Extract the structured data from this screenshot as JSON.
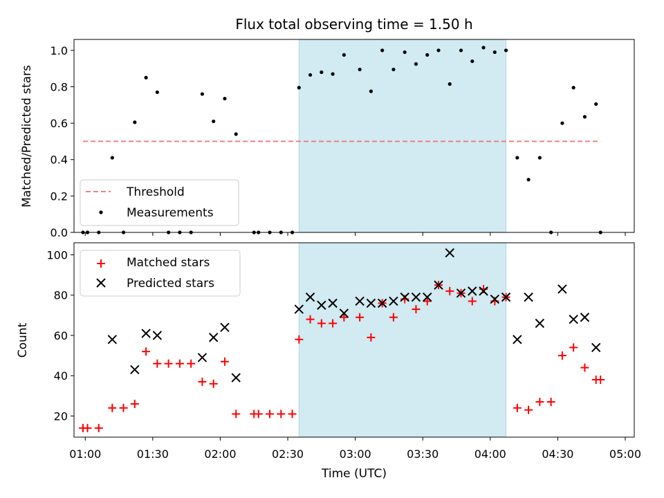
{
  "title": "Flux total observing time = 1.50 h",
  "colors": {
    "span": "#add8e6",
    "threshold": "#f08080",
    "measurement": "#000000",
    "matched": "#ff0000",
    "predicted": "#000000"
  },
  "chart_data": [
    {
      "type": "scatter",
      "ylabel": "Matched/Predicted stars",
      "xlabel": "",
      "xlim": [
        "00:55",
        "05:04"
      ],
      "ylim": [
        0,
        1.06
      ],
      "yticks": [
        0.0,
        0.2,
        0.4,
        0.6,
        0.8,
        1.0
      ],
      "ytick_labels": [
        "0.0",
        "0.2",
        "0.4",
        "0.6",
        "0.8",
        "1.0"
      ],
      "shaded_span": [
        "02:35",
        "04:07"
      ],
      "threshold": {
        "name": "Threshold",
        "y": 0.5,
        "x_range": [
          "00:59",
          "04:49"
        ]
      },
      "legend": {
        "position": "lower-left",
        "entries": [
          "Threshold",
          "Measurements"
        ]
      },
      "series": [
        {
          "name": "Measurements",
          "points": [
            [
              "00:59",
              0.0
            ],
            [
              "01:01",
              0.0
            ],
            [
              "01:06",
              0.0
            ],
            [
              "01:12",
              0.41
            ],
            [
              "01:17",
              0.0
            ],
            [
              "01:22",
              0.605
            ],
            [
              "01:27",
              0.85
            ],
            [
              "01:32",
              0.77
            ],
            [
              "01:37",
              0.0
            ],
            [
              "01:42",
              0.0
            ],
            [
              "01:47",
              0.0
            ],
            [
              "01:52",
              0.76
            ],
            [
              "01:57",
              0.61
            ],
            [
              "02:02",
              0.735
            ],
            [
              "02:07",
              0.54
            ],
            [
              "02:15",
              0.0
            ],
            [
              "02:17",
              0.0
            ],
            [
              "02:22",
              0.0
            ],
            [
              "02:27",
              0.0
            ],
            [
              "02:32",
              0.0
            ],
            [
              "02:35",
              0.795
            ],
            [
              "02:40",
              0.865
            ],
            [
              "02:45",
              0.88
            ],
            [
              "02:50",
              0.87
            ],
            [
              "02:55",
              0.975
            ],
            [
              "03:02",
              0.895
            ],
            [
              "03:07",
              0.775
            ],
            [
              "03:12",
              1.0
            ],
            [
              "03:17",
              0.895
            ],
            [
              "03:22",
              0.99
            ],
            [
              "03:27",
              0.925
            ],
            [
              "03:32",
              0.975
            ],
            [
              "03:37",
              1.0
            ],
            [
              "03:42",
              0.815
            ],
            [
              "03:47",
              1.0
            ],
            [
              "03:52",
              0.94
            ],
            [
              "03:57",
              1.015
            ],
            [
              "04:02",
              0.99
            ],
            [
              "04:07",
              1.0
            ],
            [
              "04:12",
              0.41
            ],
            [
              "04:17",
              0.29
            ],
            [
              "04:22",
              0.41
            ],
            [
              "04:27",
              0.0
            ],
            [
              "04:32",
              0.6
            ],
            [
              "04:37",
              0.795
            ],
            [
              "04:42",
              0.635
            ],
            [
              "04:47",
              0.705
            ],
            [
              "04:49",
              0.0
            ]
          ]
        }
      ]
    },
    {
      "type": "scatter",
      "ylabel": "Count",
      "xlabel": "Time (UTC)",
      "xlim": [
        "00:55",
        "05:04"
      ],
      "ylim": [
        9.5,
        106
      ],
      "yticks": [
        20,
        40,
        60,
        80,
        100
      ],
      "ytick_labels": [
        "20",
        "40",
        "60",
        "80",
        "100"
      ],
      "xticks": [
        "01:00",
        "01:30",
        "02:00",
        "02:30",
        "03:00",
        "03:30",
        "04:00",
        "04:30",
        "05:00"
      ],
      "xtick_labels": [
        "01:00",
        "01:30",
        "02:00",
        "02:30",
        "03:00",
        "03:30",
        "04:00",
        "04:30",
        "05:00"
      ],
      "shaded_span": [
        "02:35",
        "04:07"
      ],
      "legend": {
        "position": "top-left",
        "entries": [
          "Matched stars",
          "Predicted stars"
        ]
      },
      "series": [
        {
          "name": "Matched stars",
          "points": [
            [
              "00:59",
              14
            ],
            [
              "01:01",
              14
            ],
            [
              "01:06",
              14
            ],
            [
              "01:12",
              24
            ],
            [
              "01:17",
              24
            ],
            [
              "01:22",
              26
            ],
            [
              "01:27",
              52
            ],
            [
              "01:32",
              46
            ],
            [
              "01:37",
              46
            ],
            [
              "01:42",
              46
            ],
            [
              "01:47",
              46
            ],
            [
              "01:52",
              37
            ],
            [
              "01:57",
              36
            ],
            [
              "02:02",
              47
            ],
            [
              "02:07",
              21
            ],
            [
              "02:15",
              21
            ],
            [
              "02:17",
              21
            ],
            [
              "02:22",
              21
            ],
            [
              "02:27",
              21
            ],
            [
              "02:32",
              21
            ],
            [
              "02:35",
              58
            ],
            [
              "02:40",
              68
            ],
            [
              "02:45",
              66
            ],
            [
              "02:50",
              66
            ],
            [
              "02:55",
              69
            ],
            [
              "03:02",
              69
            ],
            [
              "03:07",
              59
            ],
            [
              "03:12",
              76
            ],
            [
              "03:17",
              69
            ],
            [
              "03:22",
              78
            ],
            [
              "03:27",
              73
            ],
            [
              "03:32",
              77
            ],
            [
              "03:37",
              85
            ],
            [
              "03:42",
              82
            ],
            [
              "03:47",
              81
            ],
            [
              "03:52",
              77
            ],
            [
              "03:57",
              83
            ],
            [
              "04:02",
              77
            ],
            [
              "04:07",
              79
            ],
            [
              "04:12",
              24
            ],
            [
              "04:17",
              23
            ],
            [
              "04:22",
              27
            ],
            [
              "04:27",
              27
            ],
            [
              "04:32",
              50
            ],
            [
              "04:37",
              54
            ],
            [
              "04:42",
              44
            ],
            [
              "04:47",
              38
            ],
            [
              "04:49",
              38
            ]
          ]
        },
        {
          "name": "Predicted stars",
          "points": [
            [
              "01:12",
              58
            ],
            [
              "01:22",
              43
            ],
            [
              "01:27",
              61
            ],
            [
              "01:32",
              60
            ],
            [
              "01:52",
              49
            ],
            [
              "01:57",
              59
            ],
            [
              "02:02",
              64
            ],
            [
              "02:07",
              39
            ],
            [
              "02:35",
              73
            ],
            [
              "02:40",
              79
            ],
            [
              "02:45",
              75
            ],
            [
              "02:50",
              76
            ],
            [
              "02:55",
              71
            ],
            [
              "03:02",
              77
            ],
            [
              "03:07",
              76
            ],
            [
              "03:12",
              76
            ],
            [
              "03:17",
              77
            ],
            [
              "03:22",
              79
            ],
            [
              "03:27",
              79
            ],
            [
              "03:32",
              79
            ],
            [
              "03:37",
              85
            ],
            [
              "03:42",
              101
            ],
            [
              "03:47",
              81
            ],
            [
              "03:52",
              82
            ],
            [
              "03:57",
              82
            ],
            [
              "04:02",
              78
            ],
            [
              "04:07",
              79
            ],
            [
              "04:12",
              58
            ],
            [
              "04:17",
              79
            ],
            [
              "04:22",
              66
            ],
            [
              "04:32",
              83
            ],
            [
              "04:37",
              68
            ],
            [
              "04:42",
              69
            ],
            [
              "04:47",
              54
            ]
          ]
        }
      ]
    }
  ]
}
